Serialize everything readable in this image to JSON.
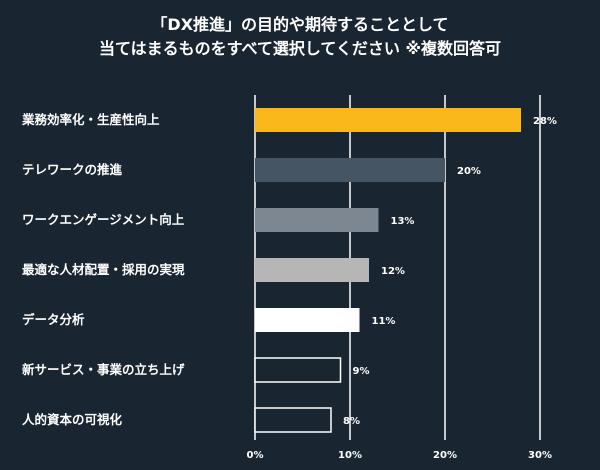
{
  "chart_data": {
    "type": "bar",
    "orientation": "horizontal",
    "title_line1": "「DX推進」の目的や期待することとして",
    "title_line2": "当てはまるものをすべて選択してください ※複数回答可",
    "categories": [
      "業務効率化・生産性向上",
      "テレワークの推進",
      "ワークエンゲージメント向上",
      "最適な人材配置・採用の実現",
      "データ分析",
      "新サービス・事業の立ち上げ",
      "人的資本の可視化"
    ],
    "values": [
      28,
      20,
      13,
      12,
      11,
      9,
      8
    ],
    "value_labels": [
      "28%",
      "20%",
      "13%",
      "12%",
      "11%",
      "9%",
      "8%"
    ],
    "bar_colors": [
      "#fbb81b",
      "#455564",
      "#7d8792",
      "#b6b6b6",
      "#ffffff",
      "none",
      "none"
    ],
    "xlim": [
      0,
      30
    ],
    "x_ticks": [
      0,
      10,
      20,
      30
    ],
    "x_tick_labels": [
      "0%",
      "10%",
      "20%",
      "30%"
    ],
    "grid": true,
    "background": "#1a2532"
  }
}
